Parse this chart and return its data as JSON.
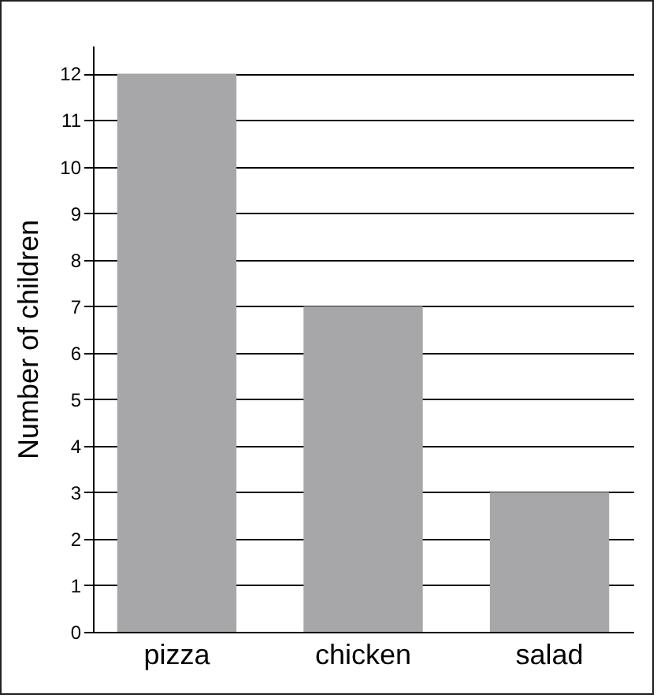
{
  "chart_data": {
    "type": "bar",
    "ylabel": "Number of children",
    "categories": [
      "pizza",
      "chicken",
      "salad"
    ],
    "values": [
      12,
      7,
      3
    ],
    "color": "#a7a7a9",
    "ylim": [
      0,
      12.6
    ],
    "yticks": [
      0,
      1,
      2,
      3,
      4,
      5,
      6,
      7,
      8,
      9,
      10,
      11,
      12
    ],
    "grid": "y"
  }
}
